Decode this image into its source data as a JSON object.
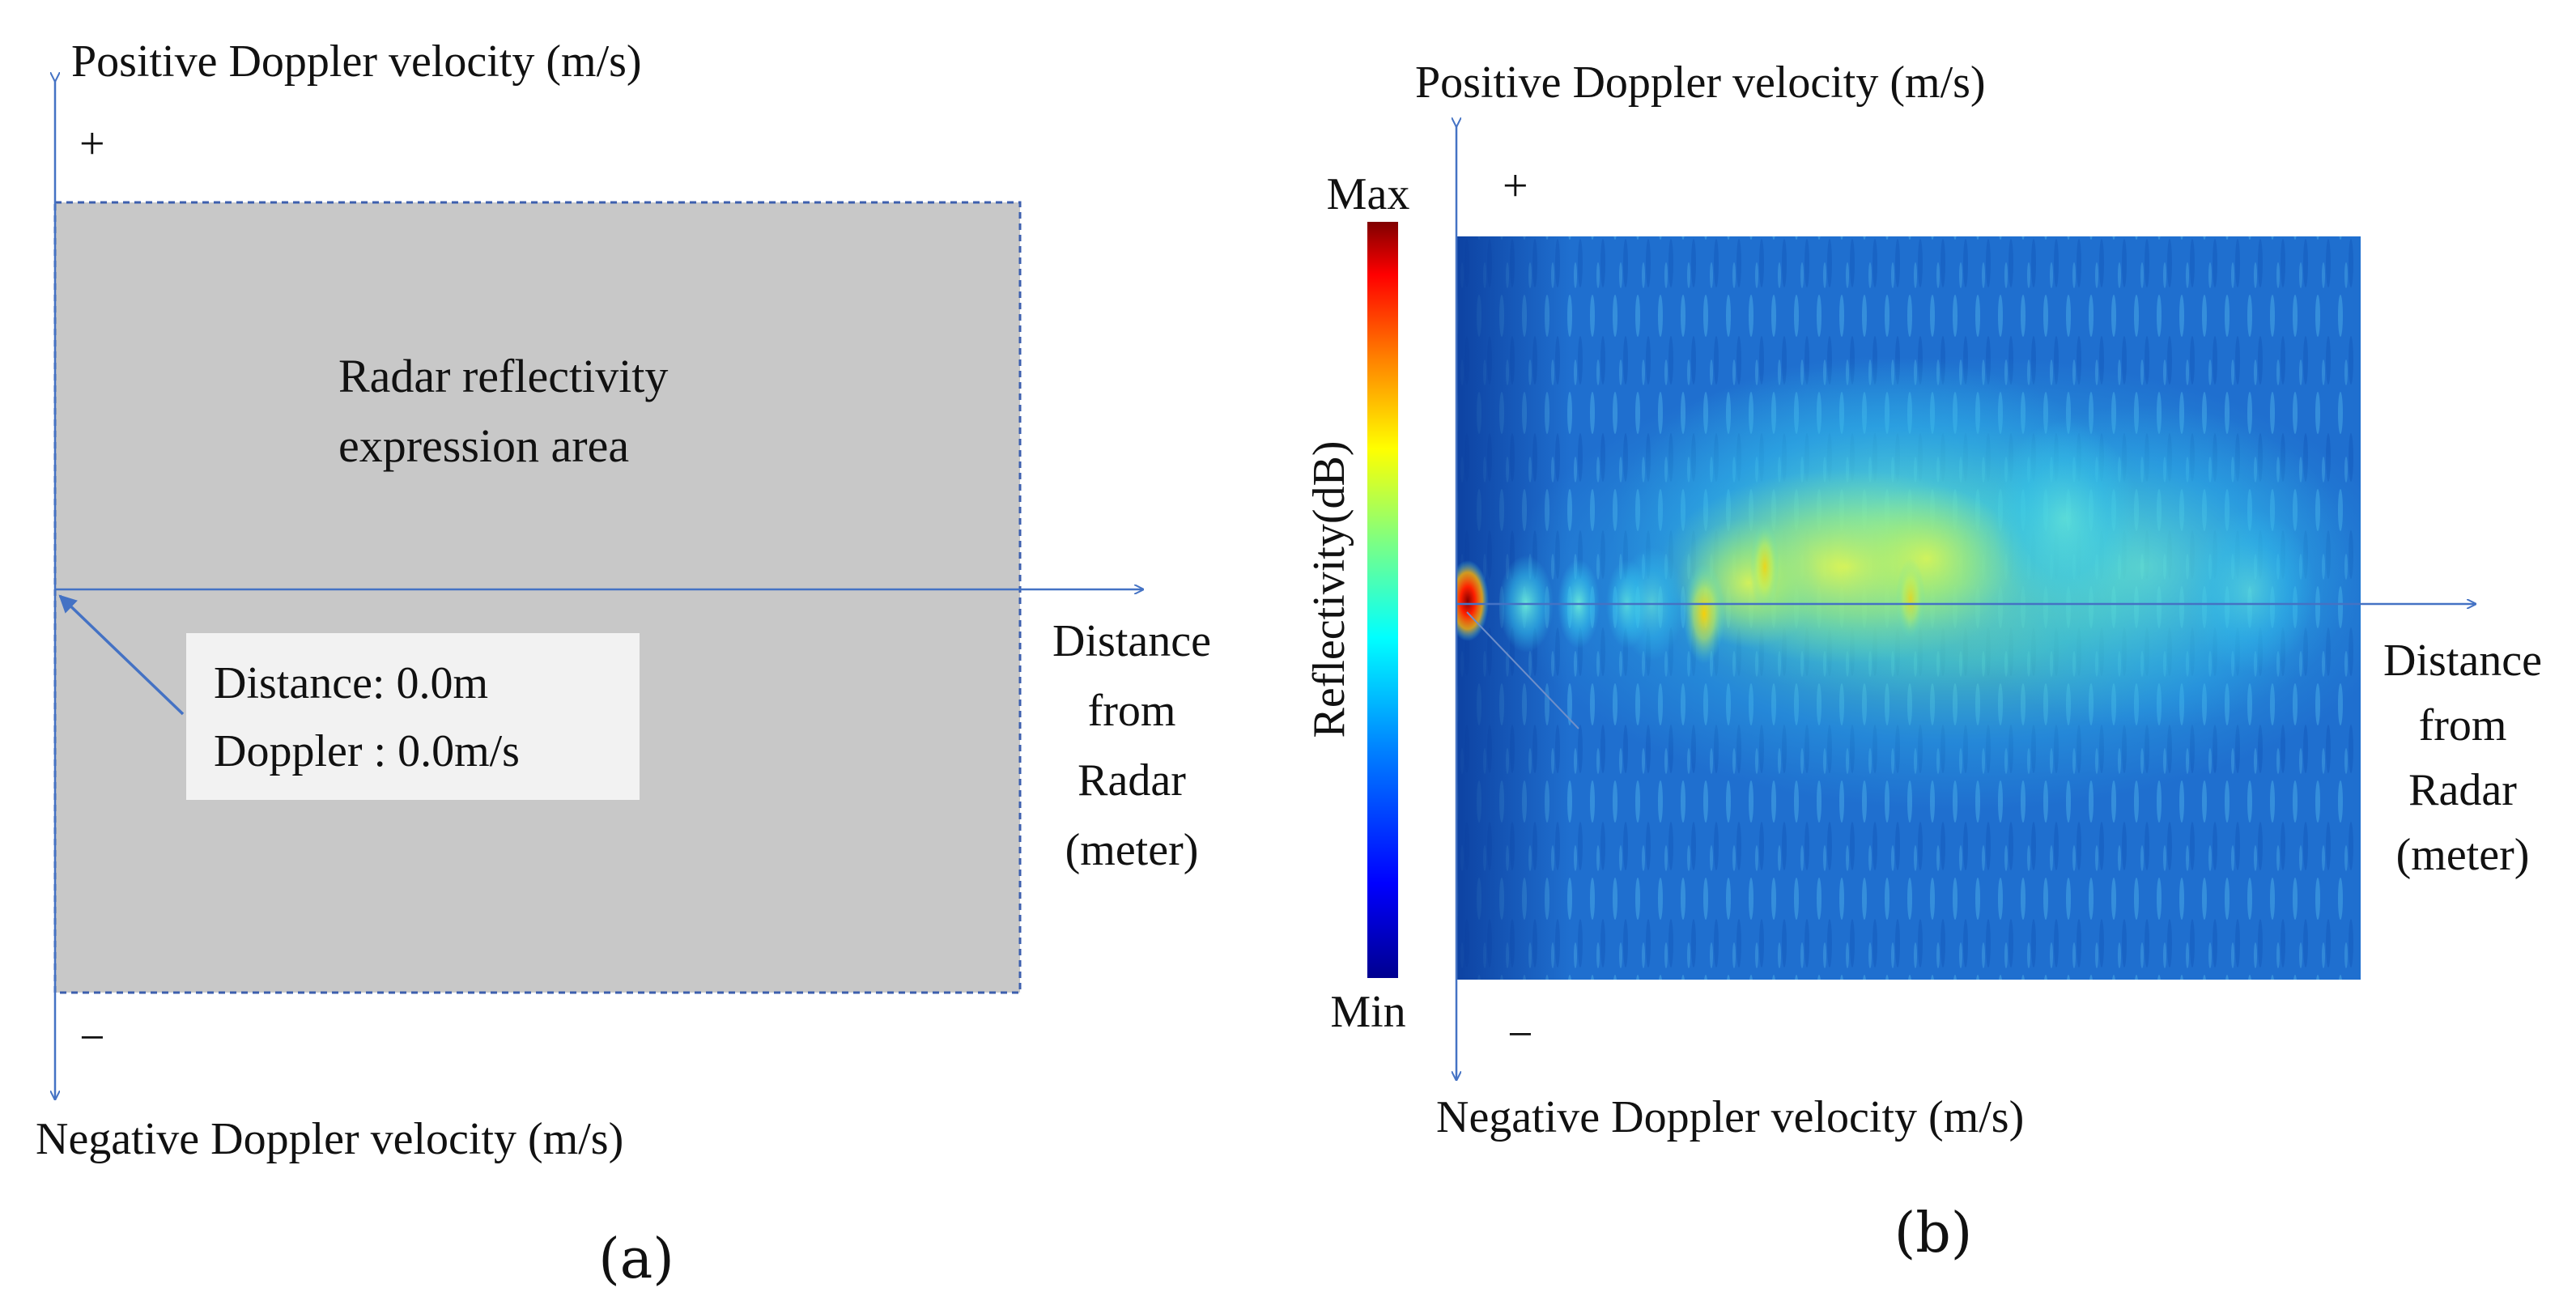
{
  "panel_a": {
    "y_axis_positive_label": "Positive Doppler velocity (m/s)",
    "y_axis_negative_label": "Negative Doppler velocity (m/s)",
    "plus_sign": "+",
    "minus_sign": "−",
    "area_label_line1": "Radar reflectivity",
    "area_label_line2": "expression area",
    "origin_line1": "Distance: 0.0m",
    "origin_line2": "Doppler : 0.0m/s",
    "x_axis_label_lines": [
      "Distance",
      "from",
      "Radar",
      "(meter)"
    ],
    "caption": "(a)",
    "colors": {
      "area_fill": "#c8c8c8",
      "area_border": "#3d5fae",
      "axis": "#4472c4",
      "callout_box": "#f2f2f2"
    }
  },
  "panel_b": {
    "y_axis_positive_label": "Positive Doppler velocity (m/s)",
    "y_axis_negative_label": "Negative Doppler velocity (m/s)",
    "plus_sign": "+",
    "minus_sign": "−",
    "colorbar_max": "Max",
    "colorbar_min": "Min",
    "colorbar_label": "Reflectivity(dB)",
    "x_axis_label_lines": [
      "Distance",
      "from",
      "Radar",
      "(meter)"
    ],
    "caption": "(b)",
    "colormap": [
      "#00008f",
      "#0000ff",
      "#0080ff",
      "#00ffff",
      "#80ff80",
      "#ffff00",
      "#ff8000",
      "#ff0000",
      "#800000"
    ],
    "colors": {
      "axis": "#4472c4",
      "heatmap_background": "#1f6fcf"
    }
  }
}
